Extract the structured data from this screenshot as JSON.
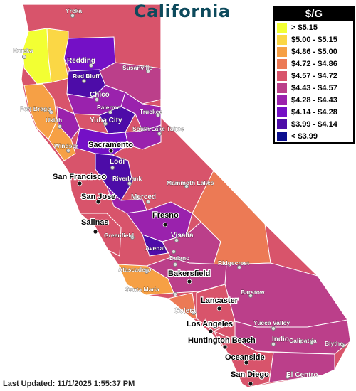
{
  "title": "California",
  "legend": {
    "header": "$/G",
    "items": [
      {
        "label": "> $5.15",
        "color": "#f2ff33"
      },
      {
        "label": "$5.00 - $5.15",
        "color": "#fbd745"
      },
      {
        "label": "$4.86 - $5.00",
        "color": "#f6a045"
      },
      {
        "label": "$4.72 - $4.86",
        "color": "#ec7a55"
      },
      {
        "label": "$4.57 - $4.72",
        "color": "#d8546b"
      },
      {
        "label": "$4.43 - $4.57",
        "color": "#bb3f8a"
      },
      {
        "label": "$4.28 - $4.43",
        "color": "#9a22ad"
      },
      {
        "label": "$4.14 - $4.28",
        "color": "#7410c6"
      },
      {
        "label": "$3.99 - $4.14",
        "color": "#4d0ca8"
      },
      {
        "label": "< $3.99",
        "color": "#0b0e8e"
      }
    ]
  },
  "cities": [
    {
      "name": "Yreka",
      "size": "small"
    },
    {
      "name": "Eureka",
      "size": "small"
    },
    {
      "name": "Redding",
      "size": "medium"
    },
    {
      "name": "Susanville",
      "size": "small"
    },
    {
      "name": "Red Bluff",
      "size": "small"
    },
    {
      "name": "Chico",
      "size": "medium"
    },
    {
      "name": "Fort Bragg",
      "size": "small"
    },
    {
      "name": "Palermo",
      "size": "small"
    },
    {
      "name": "Truckee",
      "size": "small"
    },
    {
      "name": "Ukiah",
      "size": "small"
    },
    {
      "name": "Yuba City",
      "size": "medium"
    },
    {
      "name": "South Lake Tahoe",
      "size": "small"
    },
    {
      "name": "Sacramento",
      "size": "large"
    },
    {
      "name": "Windsor",
      "size": "small"
    },
    {
      "name": "Lodi",
      "size": "medium"
    },
    {
      "name": "San Francisco",
      "size": "large"
    },
    {
      "name": "Riverbank",
      "size": "small"
    },
    {
      "name": "Mammoth Lakes",
      "size": "small"
    },
    {
      "name": "San Jose",
      "size": "large"
    },
    {
      "name": "Merced",
      "size": "medium"
    },
    {
      "name": "Fresno",
      "size": "large"
    },
    {
      "name": "Salinas",
      "size": "large"
    },
    {
      "name": "Greenfield",
      "size": "small"
    },
    {
      "name": "Visalia",
      "size": "medium"
    },
    {
      "name": "Avenal",
      "size": "small"
    },
    {
      "name": "Delano",
      "size": "small"
    },
    {
      "name": "Ridgecrest",
      "size": "small"
    },
    {
      "name": "Atascadero",
      "size": "small"
    },
    {
      "name": "Bakersfield",
      "size": "large"
    },
    {
      "name": "Santa Maria",
      "size": "small"
    },
    {
      "name": "Barstow",
      "size": "small"
    },
    {
      "name": "Goleta",
      "size": "medium"
    },
    {
      "name": "Lancaster",
      "size": "large"
    },
    {
      "name": "Yucca Valley",
      "size": "small"
    },
    {
      "name": "Los Angeles",
      "size": "large"
    },
    {
      "name": "Indio",
      "size": "medium"
    },
    {
      "name": "Blythe",
      "size": "small"
    },
    {
      "name": "Huntington Beach",
      "size": "large"
    },
    {
      "name": "Calipatria",
      "size": "small"
    },
    {
      "name": "Oceanside",
      "size": "large"
    },
    {
      "name": "San Diego",
      "size": "large"
    },
    {
      "name": "El Centro",
      "size": "medium"
    }
  ],
  "footer": {
    "label": "Last Updated:",
    "timestamp": "11/1/2025 1:55:37 PM"
  }
}
